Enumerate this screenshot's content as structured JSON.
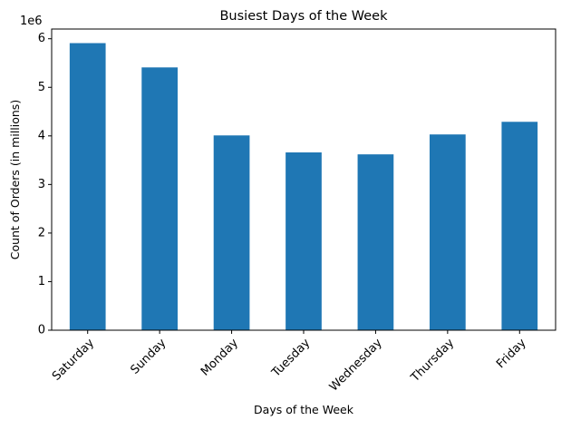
{
  "chart_data": {
    "type": "bar",
    "title": "Busiest Days of the Week",
    "xlabel": "Days of the Week",
    "ylabel": "Count of Orders (in millions)",
    "y_offset_label": "1e6",
    "categories": [
      "Saturday",
      "Sunday",
      "Monday",
      "Tuesday",
      "Wednesday",
      "Thursday",
      "Friday"
    ],
    "values": [
      5910000,
      5410000,
      4010000,
      3660000,
      3620000,
      4030000,
      4290000
    ],
    "ylim": [
      0,
      6200000
    ],
    "yticks": [
      0,
      1000000,
      2000000,
      3000000,
      4000000,
      5000000,
      6000000
    ],
    "ytick_labels": [
      "0",
      "1",
      "2",
      "3",
      "4",
      "5",
      "6"
    ],
    "grid": false,
    "legend": "none",
    "bar_color": "#1f77b4"
  }
}
